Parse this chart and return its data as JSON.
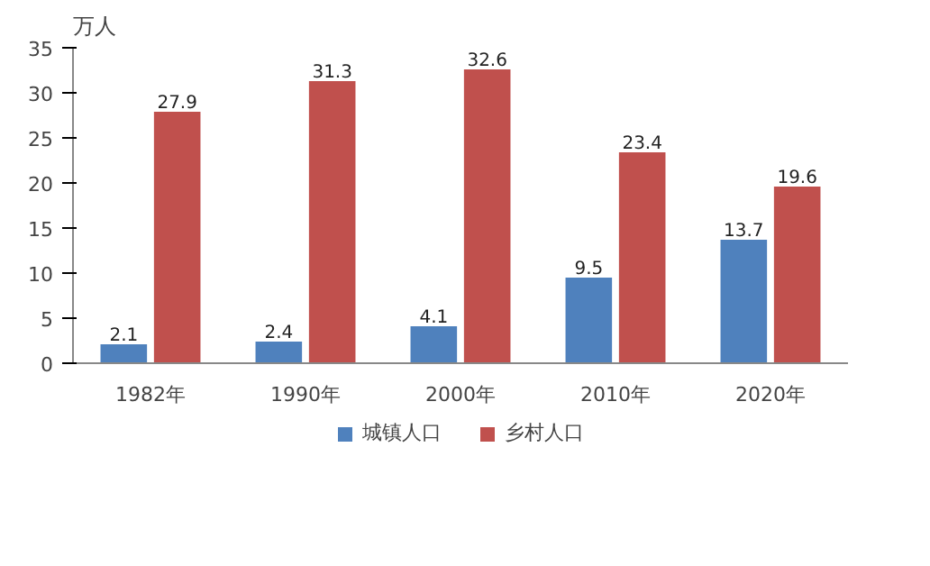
{
  "chart_data": {
    "type": "bar",
    "ylabel": "万人",
    "categories": [
      "1982年",
      "1990年",
      "2000年",
      "2010年",
      "2020年"
    ],
    "series": [
      {
        "name": "城镇人口",
        "color": "#4f81bd",
        "values": [
          2.1,
          2.4,
          4.1,
          9.5,
          13.7
        ]
      },
      {
        "name": "乡村人口",
        "color": "#c0504d",
        "values": [
          27.9,
          31.3,
          32.6,
          23.4,
          19.6
        ]
      }
    ],
    "ylim": [
      0,
      35
    ],
    "yticks": [
      0,
      5,
      10,
      15,
      20,
      25,
      30,
      35
    ],
    "grid": false,
    "legend": "bottom",
    "data_labels": true
  }
}
